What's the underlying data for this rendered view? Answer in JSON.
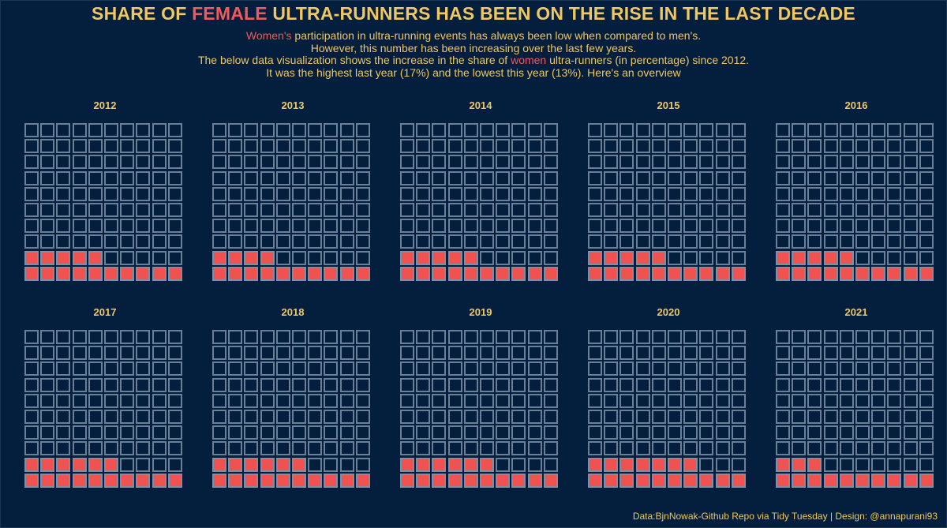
{
  "colors": {
    "background": "#041e3d",
    "accent_text": "#f0c761",
    "female": "#f0524f",
    "empty_cell_border": "#6a7f98"
  },
  "title": {
    "pre": "SHARE OF ",
    "highlight": "FEMALE",
    "post": " ULTRA-RUNNERS HAS BEEN ON THE RISE IN THE LAST DECADE"
  },
  "subtitle": {
    "line1_highlight": "Women's",
    "line1_rest": " participation in ultra-running events has always been low when compared to men's.",
    "line2": "However, this number has been increasing over the last few years.",
    "line3_pre": "The below data visualization shows the increase in the share of ",
    "line3_highlight": "women",
    "line3_post": " ultra-runners (in percentage) since 2012.",
    "line4": "It was the highest last year (17%) and the lowest this year (13%). Here's an overview"
  },
  "chart_data": {
    "type": "waffle",
    "grid": [
      10,
      10
    ],
    "unit": "percent",
    "categories": [
      "2012",
      "2013",
      "2014",
      "2015",
      "2016",
      "2017",
      "2018",
      "2019",
      "2020",
      "2021"
    ],
    "values": [
      15,
      14,
      15,
      15,
      15,
      16,
      16,
      16,
      17,
      13
    ]
  },
  "caption": "Data:BjnNowak-Github Repo via Tidy Tuesday | Design: @annapurani93"
}
